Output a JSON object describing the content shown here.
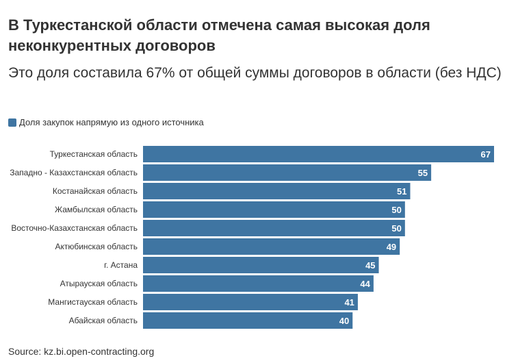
{
  "title": "В Туркестанской области отмечена самая высокая доля неконкурентных договоров",
  "subtitle": "Это доля составила 67% от общей суммы договоров в области (без НДС)",
  "legend": {
    "label": "Доля закупок напрямую из одного источника",
    "color": "#3f75a2"
  },
  "source": "Source: kz.bi.open-contracting.org",
  "chart_data": {
    "type": "bar",
    "orientation": "horizontal",
    "categories": [
      "Туркестанская область",
      "Западно - Казахстанская область",
      "Костанайская область",
      "Жамбылская область",
      "Восточно-Казахстанская область",
      "Актюбинская область",
      "г. Астана",
      "Атырауская область",
      "Мангистауская область",
      "Абайская область"
    ],
    "series": [
      {
        "name": "Доля закупок напрямую из одного источника",
        "values": [
          67,
          55,
          51,
          50,
          50,
          49,
          45,
          44,
          41,
          40
        ]
      }
    ],
    "xlim": [
      0,
      67
    ],
    "grid": false,
    "legend_position": "top-left",
    "data_labels": true,
    "color": "#3f75a2"
  }
}
